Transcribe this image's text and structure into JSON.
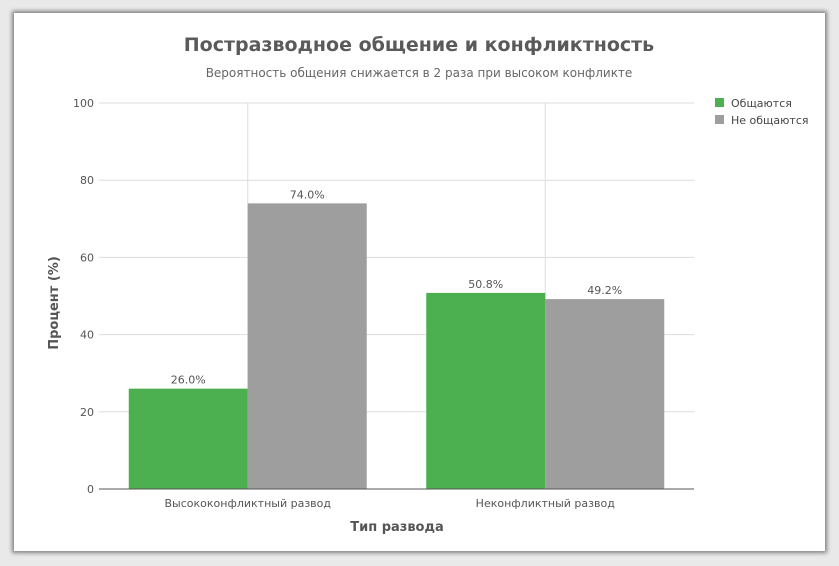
{
  "chart_data": {
    "type": "bar",
    "title": "Постразводное общение и конфликтность",
    "subtitle": "Вероятность общения снижается в 2 раза при высоком конфликте",
    "xlabel": "Тип развода",
    "ylabel": "Процент (%)",
    "categories": [
      "Высококонфликтный развод",
      "Неконфликтный развод"
    ],
    "series": [
      {
        "name": "Общаются",
        "color": "#4caf50",
        "values": [
          26.0,
          50.8
        ]
      },
      {
        "name": "Не общаются",
        "color": "#9e9e9e",
        "values": [
          74.0,
          49.2
        ]
      }
    ],
    "ylim": [
      0,
      100
    ],
    "yticks": [
      0,
      20,
      40,
      60,
      80,
      100
    ],
    "value_suffix": "%",
    "grid": true,
    "legend_position": "top-right"
  }
}
